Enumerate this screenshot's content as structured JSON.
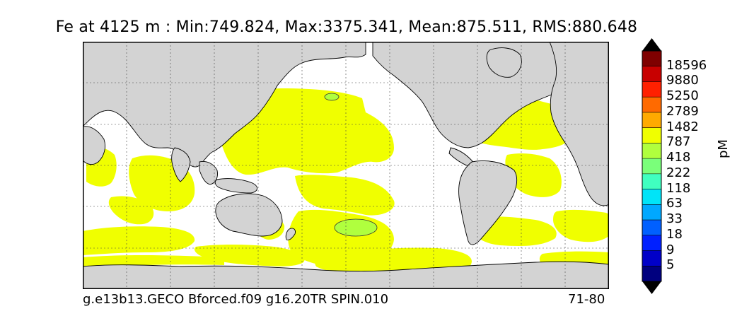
{
  "title": "Fe at 4125 m : Min:749.824, Max:3375.341, Mean:875.511, RMS:880.648",
  "footer": {
    "left": "g.e13b13.GECO Bforced.f09 g16.20TR SPIN.010",
    "right": "71-80"
  },
  "colorbar": {
    "unit": "pM",
    "labels": [
      "18596",
      "9880",
      "5250",
      "2789",
      "1482",
      "787",
      "418",
      "222",
      "118",
      "63",
      "33",
      "18",
      "9",
      "5"
    ],
    "colors": [
      "#7f0000",
      "#c80000",
      "#ff2000",
      "#ff6a00",
      "#ffaa00",
      "#f0ff00",
      "#b0ff3e",
      "#7aff7a",
      "#40ffc0",
      "#00e4f8",
      "#00a8ff",
      "#0060ff",
      "#0020ff",
      "#0000c8",
      "#00007f"
    ],
    "over_color": "#000000",
    "under_color": "#000000"
  },
  "map": {
    "land_color": "#d3d3d3",
    "ocean_color": "#ffffff",
    "field_color": "#f0ff00",
    "highlight_color": "#b0ff3e"
  }
}
